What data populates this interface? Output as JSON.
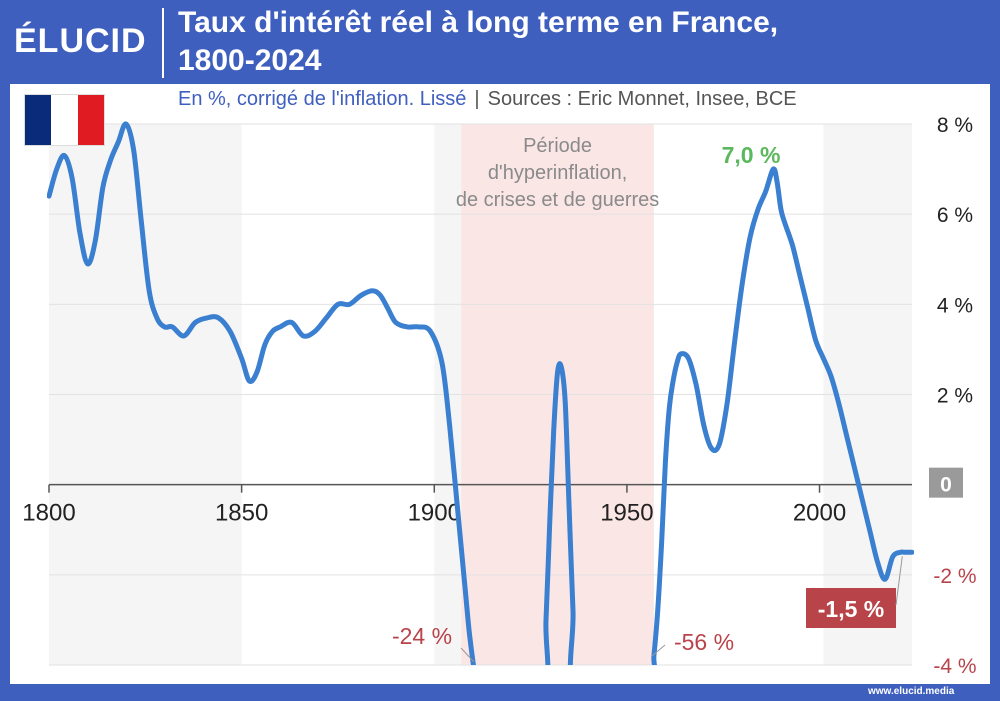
{
  "header": {
    "logo": "ÉLUCID",
    "title_line1": "Taux d'intérêt réel à long terme en France,",
    "title_line2": "1800-2024"
  },
  "subtitle": "En %, corrigé de l'inflation. Lissé",
  "separator": "|",
  "sources": "Sources : Eric Monnet, Insee, BCE",
  "flag_colors": [
    "#0a2b7a",
    "#ffffff",
    "#e01b22"
  ],
  "footer": "www.elucid.media",
  "colors": {
    "line": "#3a7fd0",
    "negative": "#b8444a",
    "peak": "#5cb85c",
    "zero_badge": "#9a9a9a",
    "shade": "#f5f5f5",
    "highlight": "#fbe6e6"
  },
  "chart_data": {
    "type": "line",
    "title": "Taux d'intérêt réel à long terme en France, 1800-2024",
    "subtitle": "En %, corrigé de l'inflation. Lissé",
    "xlim": [
      1800,
      2024
    ],
    "ylim": [
      -4,
      8
    ],
    "x_ticks": [
      1800,
      1850,
      1900,
      1950,
      2000
    ],
    "x_tick_labels": [
      "1800",
      "1850",
      "1900",
      "1950",
      "2000"
    ],
    "y_ticks": [
      8,
      6,
      4,
      2,
      0,
      -2,
      -4
    ],
    "y_tick_labels": [
      "8 %",
      "6 %",
      "4 %",
      "2 %",
      "0",
      "-2 %",
      "-4 %"
    ],
    "grid": true,
    "shaded_periods": [
      [
        1800,
        1850
      ],
      [
        1900,
        1950
      ],
      [
        2001,
        2024
      ]
    ],
    "highlight_period": {
      "range": [
        1907,
        1957
      ],
      "label_lines": [
        "Période",
        "d'hyperinflation,",
        "de crises et de guerres"
      ]
    },
    "series": [
      {
        "x": [
          1800,
          1802,
          1804,
          1806,
          1808,
          1810,
          1812,
          1814,
          1816,
          1818,
          1820,
          1822,
          1824,
          1826,
          1828,
          1830,
          1832,
          1835,
          1838,
          1841,
          1844,
          1847,
          1850,
          1852,
          1854,
          1856,
          1858,
          1860,
          1863,
          1866,
          1869,
          1872,
          1875,
          1878,
          1881,
          1884,
          1886,
          1888,
          1890,
          1893,
          1896,
          1899,
          1902,
          1904,
          1906,
          1908,
          1909,
          1910,
          1911,
          1911.5,
          1928,
          1929,
          1930,
          1931,
          1932,
          1933,
          1934,
          1935,
          1936,
          1937,
          1956,
          1957,
          1958,
          1959,
          1960,
          1961,
          1962,
          1963,
          1964,
          1966,
          1968,
          1970,
          1972,
          1974,
          1976,
          1978,
          1980,
          1982,
          1984,
          1986,
          1988,
          1989,
          1990,
          1991,
          1993,
          1995,
          1997,
          1999,
          2001,
          2003,
          2005,
          2007,
          2009,
          2011,
          2013,
          2015,
          2017,
          2019,
          2021,
          2022,
          2023,
          2024
        ],
        "y": [
          6.4,
          7.0,
          7.3,
          6.8,
          5.6,
          4.9,
          5.4,
          6.6,
          7.2,
          7.6,
          8.0,
          7.4,
          5.8,
          4.3,
          3.7,
          3.5,
          3.5,
          3.3,
          3.6,
          3.7,
          3.7,
          3.4,
          2.8,
          2.3,
          2.5,
          3.1,
          3.4,
          3.5,
          3.6,
          3.3,
          3.4,
          3.7,
          4.0,
          4.0,
          4.2,
          4.3,
          4.2,
          3.9,
          3.6,
          3.5,
          3.5,
          3.4,
          2.7,
          1.3,
          -0.5,
          -2.3,
          -3.2,
          -3.9,
          -4.5,
          -4.6,
          -4.6,
          -3.0,
          -0.8,
          1.2,
          2.5,
          2.6,
          1.8,
          -0.5,
          -2.8,
          -4.6,
          -4.6,
          -3.8,
          -2.8,
          -1.3,
          0.5,
          1.7,
          2.3,
          2.7,
          2.9,
          2.8,
          2.2,
          1.3,
          0.8,
          0.9,
          1.8,
          3.2,
          4.5,
          5.5,
          6.1,
          6.5,
          7.0,
          6.7,
          6.1,
          5.8,
          5.3,
          4.6,
          3.9,
          3.2,
          2.8,
          2.4,
          1.8,
          1.1,
          0.4,
          -0.3,
          -1.0,
          -1.7,
          -2.1,
          -1.6,
          -1.5,
          -1.5,
          -1.5,
          -1.5
        ],
        "line_color": "#3a7fd0"
      }
    ],
    "annotations": [
      {
        "label": "7,0 %",
        "x": 1990,
        "y": 7.0,
        "color": "#5cb85c"
      },
      {
        "label": "-24 %",
        "x": 1910,
        "y": -4.0,
        "color": "#b8444a"
      },
      {
        "label": "-56 %",
        "x": 1957,
        "y": -4.0,
        "color": "#b8444a"
      },
      {
        "label": "-1,5 %",
        "x": 2022,
        "y": -1.5,
        "color": "#b8444a",
        "boxed": true
      }
    ]
  }
}
